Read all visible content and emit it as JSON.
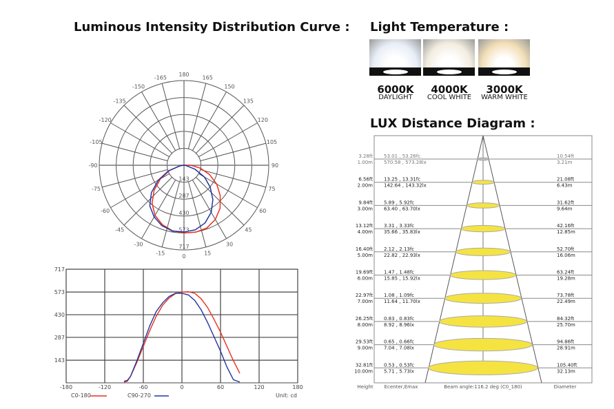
{
  "headings": {
    "luminous": "Luminous Intensity Distribution Curve :",
    "temperature": "Light Temperature :",
    "lux": "LUX Distance Diagram :"
  },
  "temperatures": [
    {
      "kelvin": "6000K",
      "name": "DAYLIGHT",
      "color": "#e8eef7"
    },
    {
      "kelvin": "4000K",
      "name": "COOL WHITE",
      "color": "#f3ede0"
    },
    {
      "kelvin": "3000K",
      "name": "WARM WHITE",
      "color": "#f3dfb8"
    }
  ],
  "chart_data": [
    {
      "type": "polar",
      "angle_labels": [
        "0",
        "15",
        "30",
        "45",
        "60",
        "75",
        "90",
        "105",
        "120",
        "135",
        "150",
        "165",
        "180",
        "-165",
        "-150",
        "-135",
        "-120",
        "-105",
        "-90",
        "-75",
        "-60",
        "-45",
        "-30",
        "-15"
      ],
      "radial_labels": [
        "143",
        "287",
        "430",
        "573",
        "717"
      ],
      "rmax": 717,
      "series": [
        {
          "name": "C0-180",
          "color": "#e8301c",
          "angles": [
            -90,
            -85,
            -80,
            -70,
            -60,
            -50,
            -40,
            -30,
            -20,
            -10,
            0,
            10,
            20,
            30,
            40,
            50,
            60,
            70,
            80,
            90
          ],
          "values": [
            5,
            10,
            40,
            130,
            230,
            330,
            420,
            490,
            535,
            563,
            573,
            575,
            565,
            530,
            475,
            400,
            320,
            230,
            140,
            60
          ]
        },
        {
          "name": "C90-270",
          "color": "#2233a0",
          "angles": [
            -90,
            -85,
            -80,
            -70,
            -60,
            -50,
            -40,
            -30,
            -20,
            -10,
            0,
            10,
            20,
            30,
            40,
            50,
            60,
            70,
            80,
            90
          ],
          "values": [
            10,
            15,
            40,
            140,
            250,
            360,
            450,
            505,
            545,
            565,
            565,
            555,
            520,
            460,
            380,
            290,
            200,
            100,
            20,
            5
          ]
        }
      ]
    },
    {
      "type": "line",
      "xlim": [
        -180,
        180
      ],
      "ylim": [
        0,
        717
      ],
      "x_ticks": [
        "-180",
        "-120",
        "-60",
        "0",
        "60",
        "120",
        "180"
      ],
      "y_ticks": [
        "143",
        "287",
        "430",
        "573",
        "717"
      ],
      "grid": true,
      "legend": "bottom",
      "unit_label": "Unit: cd",
      "series_ref": "same as polar series"
    },
    {
      "type": "table",
      "beam_angle_label": "Beam angle:116.2 deg (C0_180)",
      "column_labels": {
        "height": "Height",
        "e": "Ecenter,Emax",
        "diameter": "Diameter"
      },
      "rows": [
        {
          "ft": "3.28ft",
          "m": "1.00m",
          "fc": "53.01 , 53.26fc",
          "lx": "570.58 , 573.28lx",
          "dft": "10.54ft",
          "dm": "3.21m"
        },
        {
          "ft": "6.56ft",
          "m": "2.00m",
          "fc": "13.25 , 13.31fc",
          "lx": "142.64 , 143.32lx",
          "dft": "21.08ft",
          "dm": "6.43m"
        },
        {
          "ft": "9.84ft",
          "m": "3.00m",
          "fc": "5.89 , 5.92fc",
          "lx": "63.40 , 63.70lx",
          "dft": "31.62ft",
          "dm": "9.64m"
        },
        {
          "ft": "13.12ft",
          "m": "4.00m",
          "fc": "3.31 , 3.33fc",
          "lx": "35.66 , 35.83lx",
          "dft": "42.16ft",
          "dm": "12.85m"
        },
        {
          "ft": "16.40ft",
          "m": "5.00m",
          "fc": "2.12 , 2.13fc",
          "lx": "22.82 , 22.93lx",
          "dft": "52.70ft",
          "dm": "16.06m"
        },
        {
          "ft": "19.69ft",
          "m": "6.00m",
          "fc": "1.47 , 1.48fc",
          "lx": "15.85 , 15.92lx",
          "dft": "63.24ft",
          "dm": "19.28m"
        },
        {
          "ft": "22.97ft",
          "m": "7.00m",
          "fc": "1.08 , 1.09fc",
          "lx": "11.64 , 11.70lx",
          "dft": "73.78ft",
          "dm": "22.49m"
        },
        {
          "ft": "26.25ft",
          "m": "8.00m",
          "fc": "0.83 , 0.83fc",
          "lx": "8.92 , 8.96lx",
          "dft": "84.32ft",
          "dm": "25.70m"
        },
        {
          "ft": "29.53ft",
          "m": "9.00m",
          "fc": "0.65 , 0.66fc",
          "lx": "7.04 , 7.08lx",
          "dft": "94.86ft",
          "dm": "28.91m"
        },
        {
          "ft": "32.81ft",
          "m": "10.00m",
          "fc": "0.53 , 0.53fc",
          "lx": "5.71 , 5.73lx",
          "dft": "105.40ft",
          "dm": "32.13m"
        }
      ]
    }
  ]
}
